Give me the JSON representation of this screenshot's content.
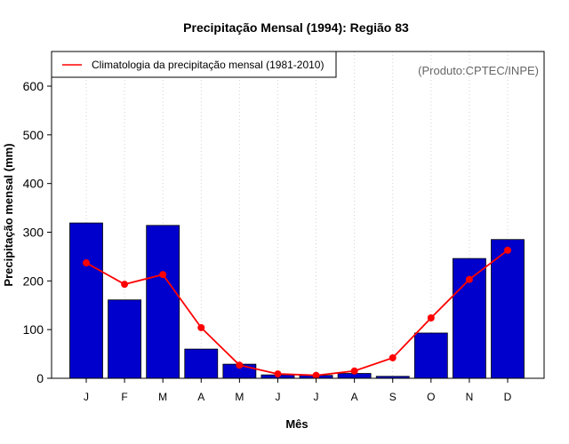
{
  "chart_data": {
    "type": "bar",
    "title": "Precipitação Mensal (1994): Região 83",
    "xlabel": "Mês",
    "ylabel": "Precipitação mensal (mm)",
    "ylim": [
      0,
      600
    ],
    "yticks": [
      0,
      100,
      200,
      300,
      400,
      500,
      600
    ],
    "ytick_labels": [
      "0",
      "100",
      "200",
      "300",
      "400",
      "500",
      "600"
    ],
    "categories": [
      "J",
      "F",
      "M",
      "A",
      "M",
      "J",
      "J",
      "A",
      "S",
      "O",
      "N",
      "D"
    ],
    "grid": "vertical dotted",
    "series": [
      {
        "name": "Precipitação mensal (1994)",
        "type": "bar",
        "color": "#0000cc",
        "values": [
          319,
          161,
          314,
          60,
          29,
          7,
          6,
          10,
          4,
          93,
          246,
          285
        ]
      },
      {
        "name": "Climatologia da precipitação mensal (1981-2010)",
        "type": "line",
        "color": "#ff0000",
        "values": [
          237,
          193,
          213,
          104,
          27,
          9,
          6,
          15,
          42,
          124,
          203,
          263
        ]
      }
    ],
    "legend": {
      "position": "top-left",
      "entries": [
        "Climatologia da precipitação mensal (1981-2010)"
      ]
    },
    "annotation": "(Produto:CPTEC/INPE)"
  }
}
